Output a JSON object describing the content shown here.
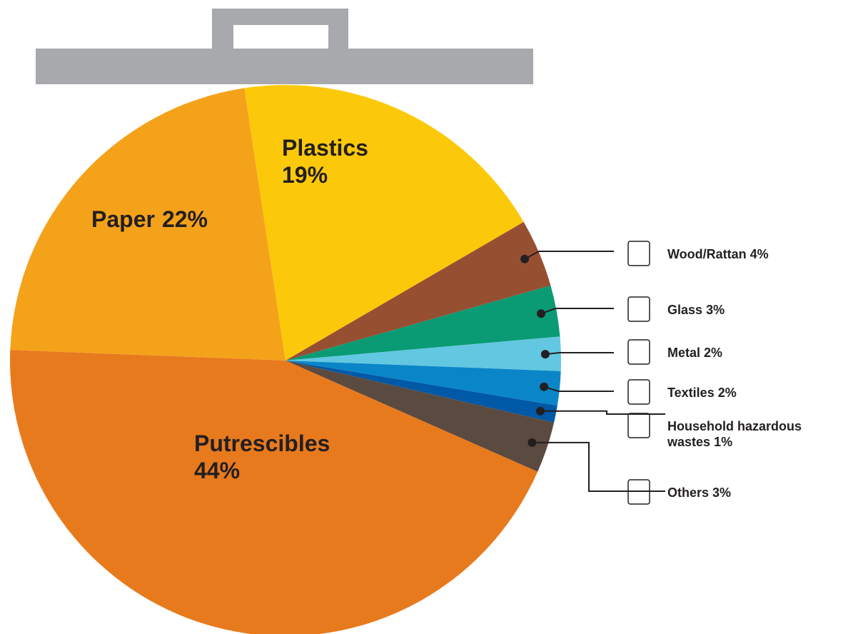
{
  "chart_data": {
    "type": "pie",
    "categories": [
      "Paper",
      "Plastics",
      "Wood/Rattan",
      "Glass",
      "Metal",
      "Textiles",
      "Household hazardous wastes",
      "Others",
      "Putrescibles"
    ],
    "values": [
      22,
      19,
      4,
      3,
      2,
      2,
      1,
      3,
      44
    ],
    "value_labels": [
      "22%",
      "19%",
      "4%",
      "3%",
      "2%",
      "2%",
      "1%",
      "3%",
      "44%"
    ],
    "colors": [
      "#f5a21b",
      "#fcc90a",
      "#974f32",
      "#0a9b74",
      "#62c7e0",
      "#0a86c8",
      "#0059a6",
      "#5b4a40",
      "#e87a1e"
    ]
  }
}
